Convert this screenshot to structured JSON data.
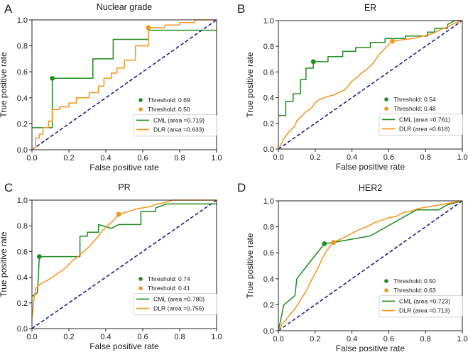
{
  "colors": {
    "cml": "#1f8c1f",
    "dlr": "#f7931e",
    "diagonal": "#1c1c8c",
    "axis": "#222222"
  },
  "chart_data": [
    {
      "panel": "A",
      "type": "line",
      "title": "Nuclear grade",
      "xlabel": "False positive rate",
      "ylabel": "True positive rate",
      "xlim": [
        0,
        1
      ],
      "ylim": [
        0,
        1
      ],
      "xticks": [
        "0.0",
        "0.2",
        "0.4",
        "0.6",
        "0.8",
        "1.0"
      ],
      "yticks": [
        "0.0",
        "0.2",
        "0.4",
        "0.6",
        "0.8",
        "1.0"
      ],
      "legend_position": "bottom-right",
      "thresholds": [
        {
          "series": "CML",
          "label": "Threshold: 0.69",
          "x": 0.11,
          "y": 0.55
        },
        {
          "series": "DLR",
          "label": "Threshold: 0.50",
          "x": 0.63,
          "y": 0.94
        }
      ],
      "series": [
        {
          "name": "CML",
          "label": "CML (area =0.719)",
          "points": [
            [
              0,
              0.17
            ],
            [
              0.11,
              0.17
            ],
            [
              0.11,
              0.55
            ],
            [
              0.33,
              0.55
            ],
            [
              0.33,
              0.7
            ],
            [
              0.44,
              0.7
            ],
            [
              0.44,
              0.85
            ],
            [
              0.63,
              0.85
            ],
            [
              0.63,
              0.92
            ],
            [
              1.0,
              0.92
            ]
          ]
        },
        {
          "name": "DLR",
          "label": "DLR (area =0.633)",
          "points": [
            [
              0,
              0
            ],
            [
              0.02,
              0.02
            ],
            [
              0.02,
              0.09
            ],
            [
              0.04,
              0.09
            ],
            [
              0.04,
              0.12
            ],
            [
              0.06,
              0.12
            ],
            [
              0.06,
              0.17
            ],
            [
              0.09,
              0.17
            ],
            [
              0.09,
              0.22
            ],
            [
              0.11,
              0.22
            ],
            [
              0.11,
              0.31
            ],
            [
              0.15,
              0.31
            ],
            [
              0.15,
              0.33
            ],
            [
              0.2,
              0.33
            ],
            [
              0.2,
              0.36
            ],
            [
              0.24,
              0.36
            ],
            [
              0.24,
              0.4
            ],
            [
              0.31,
              0.4
            ],
            [
              0.31,
              0.44
            ],
            [
              0.36,
              0.44
            ],
            [
              0.36,
              0.49
            ],
            [
              0.39,
              0.49
            ],
            [
              0.39,
              0.55
            ],
            [
              0.43,
              0.55
            ],
            [
              0.43,
              0.59
            ],
            [
              0.46,
              0.59
            ],
            [
              0.46,
              0.63
            ],
            [
              0.5,
              0.63
            ],
            [
              0.5,
              0.69
            ],
            [
              0.56,
              0.69
            ],
            [
              0.56,
              0.8
            ],
            [
              0.63,
              0.8
            ],
            [
              0.63,
              0.94
            ],
            [
              0.72,
              0.94
            ],
            [
              0.72,
              0.96
            ],
            [
              0.8,
              0.96
            ],
            [
              0.8,
              0.98
            ],
            [
              0.88,
              0.98
            ],
            [
              0.88,
              1.0
            ],
            [
              1.0,
              1.0
            ]
          ]
        }
      ]
    },
    {
      "panel": "B",
      "type": "line",
      "title": "ER",
      "xlabel": "False positive rate",
      "ylabel": "True positive rate",
      "xlim": [
        0,
        1
      ],
      "ylim": [
        0,
        1
      ],
      "xticks": [
        "0.0",
        "0.2",
        "0.4",
        "0.6",
        "0.8",
        "1.0"
      ],
      "yticks": [
        "0.0",
        "0.2",
        "0.4",
        "0.6",
        "0.8",
        "1.0"
      ],
      "legend_position": "bottom-right",
      "thresholds": [
        {
          "series": "CML",
          "label": "Threshold: 0.54",
          "x": 0.19,
          "y": 0.68
        },
        {
          "series": "DLR",
          "label": "Threshold: 0.48",
          "x": 0.62,
          "y": 0.84
        }
      ],
      "series": [
        {
          "name": "CML",
          "label": "CML (area =0.761)",
          "points": [
            [
              0,
              0.26
            ],
            [
              0.04,
              0.26
            ],
            [
              0.04,
              0.37
            ],
            [
              0.08,
              0.37
            ],
            [
              0.08,
              0.43
            ],
            [
              0.12,
              0.43
            ],
            [
              0.12,
              0.54
            ],
            [
              0.15,
              0.54
            ],
            [
              0.15,
              0.63
            ],
            [
              0.19,
              0.63
            ],
            [
              0.19,
              0.68
            ],
            [
              0.27,
              0.68
            ],
            [
              0.27,
              0.72
            ],
            [
              0.35,
              0.72
            ],
            [
              0.35,
              0.76
            ],
            [
              0.42,
              0.76
            ],
            [
              0.42,
              0.79
            ],
            [
              0.5,
              0.79
            ],
            [
              0.5,
              0.83
            ],
            [
              0.58,
              0.83
            ],
            [
              0.58,
              0.86
            ],
            [
              0.69,
              0.86
            ],
            [
              0.69,
              0.88
            ],
            [
              0.81,
              0.88
            ],
            [
              0.81,
              0.91
            ],
            [
              0.85,
              0.91
            ],
            [
              0.85,
              0.94
            ],
            [
              0.92,
              0.94
            ],
            [
              0.92,
              0.97
            ],
            [
              0.96,
              1.0
            ],
            [
              1.0,
              1.0
            ]
          ]
        },
        {
          "name": "DLR",
          "label": "DLR (area =0.618)",
          "points": [
            [
              0,
              0
            ],
            [
              0.02,
              0.05
            ],
            [
              0.03,
              0.08
            ],
            [
              0.05,
              0.12
            ],
            [
              0.07,
              0.15
            ],
            [
              0.09,
              0.18
            ],
            [
              0.1,
              0.22
            ],
            [
              0.13,
              0.26
            ],
            [
              0.15,
              0.29
            ],
            [
              0.18,
              0.32
            ],
            [
              0.2,
              0.36
            ],
            [
              0.23,
              0.39
            ],
            [
              0.27,
              0.41
            ],
            [
              0.3,
              0.42
            ],
            [
              0.33,
              0.44
            ],
            [
              0.36,
              0.46
            ],
            [
              0.38,
              0.49
            ],
            [
              0.4,
              0.53
            ],
            [
              0.43,
              0.56
            ],
            [
              0.45,
              0.59
            ],
            [
              0.48,
              0.62
            ],
            [
              0.51,
              0.66
            ],
            [
              0.53,
              0.7
            ],
            [
              0.55,
              0.74
            ],
            [
              0.57,
              0.77
            ],
            [
              0.59,
              0.8
            ],
            [
              0.62,
              0.84
            ],
            [
              0.67,
              0.85
            ],
            [
              0.73,
              0.86
            ],
            [
              0.79,
              0.88
            ],
            [
              0.84,
              0.9
            ],
            [
              0.88,
              0.93
            ],
            [
              0.92,
              0.95
            ],
            [
              0.96,
              0.98
            ],
            [
              1.0,
              1.0
            ]
          ]
        }
      ]
    },
    {
      "panel": "C",
      "type": "line",
      "title": "PR",
      "xlabel": "False positive rate",
      "ylabel": "True positive rate",
      "xlim": [
        0,
        1
      ],
      "ylim": [
        0,
        1
      ],
      "xticks": [
        "0.0",
        "0.2",
        "0.4",
        "0.6",
        "0.8",
        "1.0"
      ],
      "yticks": [
        "0.0",
        "0.2",
        "0.4",
        "0.6",
        "0.8",
        "1.0"
      ],
      "legend_position": "bottom-right",
      "thresholds": [
        {
          "series": "CML",
          "label": "Threshold: 0.74",
          "x": 0.04,
          "y": 0.56
        },
        {
          "series": "DLR",
          "label": "Threshold: 0.41",
          "x": 0.47,
          "y": 0.89
        }
      ],
      "series": [
        {
          "name": "CML",
          "label": "CML (area =0.780)",
          "points": [
            [
              0,
              0.25
            ],
            [
              0.03,
              0.28
            ],
            [
              0.04,
              0.56
            ],
            [
              0.26,
              0.56
            ],
            [
              0.26,
              0.72
            ],
            [
              0.3,
              0.72
            ],
            [
              0.3,
              0.75
            ],
            [
              0.36,
              0.75
            ],
            [
              0.36,
              0.81
            ],
            [
              0.43,
              0.78
            ],
            [
              0.47,
              0.81
            ],
            [
              0.59,
              0.81
            ],
            [
              0.59,
              0.91
            ],
            [
              0.67,
              0.91
            ],
            [
              0.67,
              0.94
            ],
            [
              0.73,
              0.97
            ],
            [
              0.96,
              0.97
            ],
            [
              1.0,
              0.97
            ]
          ]
        },
        {
          "name": "DLR",
          "label": "DLR (area =0.755)",
          "points": [
            [
              0,
              0.08
            ],
            [
              0.01,
              0.22
            ],
            [
              0.02,
              0.31
            ],
            [
              0.04,
              0.34
            ],
            [
              0.06,
              0.36
            ],
            [
              0.09,
              0.38
            ],
            [
              0.12,
              0.41
            ],
            [
              0.15,
              0.44
            ],
            [
              0.18,
              0.47
            ],
            [
              0.2,
              0.5
            ],
            [
              0.22,
              0.53
            ],
            [
              0.25,
              0.56
            ],
            [
              0.28,
              0.6
            ],
            [
              0.31,
              0.64
            ],
            [
              0.33,
              0.67
            ],
            [
              0.36,
              0.72
            ],
            [
              0.38,
              0.76
            ],
            [
              0.41,
              0.8
            ],
            [
              0.44,
              0.84
            ],
            [
              0.47,
              0.89
            ],
            [
              0.52,
              0.91
            ],
            [
              0.56,
              0.93
            ],
            [
              0.6,
              0.94
            ],
            [
              0.64,
              0.95
            ],
            [
              0.68,
              0.97
            ],
            [
              0.72,
              0.98
            ],
            [
              0.76,
              1.0
            ],
            [
              0.9,
              1.0
            ],
            [
              1.0,
              1.0
            ]
          ]
        }
      ]
    },
    {
      "panel": "D",
      "type": "line",
      "title": "HER2",
      "xlabel": "False positive rate",
      "ylabel": "True positive rate",
      "xlim": [
        0,
        1
      ],
      "ylim": [
        0,
        1
      ],
      "xticks": [
        "0.0",
        "0.2",
        "0.4",
        "0.6",
        "0.8",
        "1.0"
      ],
      "yticks": [
        "0.0",
        "0.2",
        "0.4",
        "0.6",
        "0.8",
        "1.0"
      ],
      "legend_position": "bottom-right",
      "thresholds": [
        {
          "series": "CML",
          "label": "Threshold: 0.50",
          "x": 0.25,
          "y": 0.67
        },
        {
          "series": "DLR",
          "label": "Threshold: 0.63",
          "x": 0.3,
          "y": 0.68
        }
      ],
      "series": [
        {
          "name": "CML",
          "label": "CML (area =0.723)",
          "points": [
            [
              0,
              0
            ],
            [
              0.03,
              0.2
            ],
            [
              0.09,
              0.27
            ],
            [
              0.1,
              0.4
            ],
            [
              0.25,
              0.67
            ],
            [
              0.3,
              0.68
            ],
            [
              0.5,
              0.73
            ],
            [
              0.75,
              0.93
            ],
            [
              0.87,
              0.93
            ],
            [
              0.92,
              0.97
            ],
            [
              1.0,
              1.0
            ]
          ]
        },
        {
          "name": "DLR",
          "label": "DLR (area =0.713)",
          "points": [
            [
              0,
              0
            ],
            [
              0.02,
              0.05
            ],
            [
              0.04,
              0.08
            ],
            [
              0.06,
              0.12
            ],
            [
              0.08,
              0.15
            ],
            [
              0.1,
              0.19
            ],
            [
              0.12,
              0.24
            ],
            [
              0.14,
              0.28
            ],
            [
              0.16,
              0.33
            ],
            [
              0.18,
              0.39
            ],
            [
              0.2,
              0.44
            ],
            [
              0.22,
              0.5
            ],
            [
              0.24,
              0.56
            ],
            [
              0.26,
              0.61
            ],
            [
              0.28,
              0.65
            ],
            [
              0.3,
              0.68
            ],
            [
              0.33,
              0.7
            ],
            [
              0.36,
              0.72
            ],
            [
              0.4,
              0.75
            ],
            [
              0.44,
              0.78
            ],
            [
              0.48,
              0.8
            ],
            [
              0.52,
              0.83
            ],
            [
              0.56,
              0.85
            ],
            [
              0.6,
              0.87
            ],
            [
              0.64,
              0.88
            ],
            [
              0.68,
              0.91
            ],
            [
              0.72,
              0.92
            ],
            [
              0.76,
              0.94
            ],
            [
              0.8,
              0.95
            ],
            [
              0.84,
              0.96
            ],
            [
              0.88,
              0.97
            ],
            [
              0.92,
              0.98
            ],
            [
              0.96,
              0.99
            ],
            [
              1.0,
              1.0
            ]
          ]
        }
      ]
    }
  ]
}
